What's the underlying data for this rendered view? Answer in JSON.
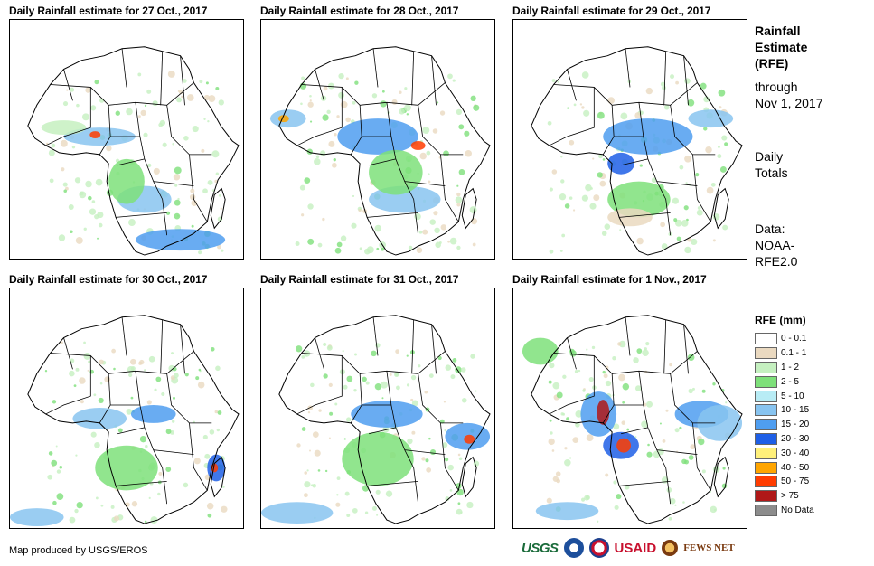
{
  "panels": [
    {
      "title": "Daily Rainfall estimate for 27 Oct., 2017"
    },
    {
      "title": "Daily Rainfall estimate for 28 Oct., 2017"
    },
    {
      "title": "Daily Rainfall estimate for 29 Oct., 2017"
    },
    {
      "title": "Daily Rainfall estimate for 30 Oct., 2017"
    },
    {
      "title": "Daily Rainfall estimate for 31 Oct., 2017"
    },
    {
      "title": "Daily Rainfall estimate for 1 Nov., 2017"
    }
  ],
  "side": {
    "line1": "Rainfall",
    "line2": "Estimate",
    "line3": "(RFE)",
    "line4": "through",
    "line5": "Nov 1, 2017",
    "line6": "Daily",
    "line7": "Totals",
    "line8": "Data:",
    "line9": "NOAA-",
    "line10": "RFE2.0"
  },
  "legend": {
    "title": "RFE (mm)",
    "items": [
      {
        "label": "0 - 0.1",
        "color": "#ffffff"
      },
      {
        "label": "0.1 - 1",
        "color": "#ead9c0"
      },
      {
        "label": "1 - 2",
        "color": "#c5f0c0"
      },
      {
        "label": "2 - 5",
        "color": "#7ee07a"
      },
      {
        "label": "5 - 10",
        "color": "#b8ecf5"
      },
      {
        "label": "10 - 15",
        "color": "#88c4f0"
      },
      {
        "label": "15 - 20",
        "color": "#4f9ef0"
      },
      {
        "label": "20 - 30",
        "color": "#1e5fe6"
      },
      {
        "label": "30 - 40",
        "color": "#fff07a"
      },
      {
        "label": "40 - 50",
        "color": "#ffa500"
      },
      {
        "label": "50 - 75",
        "color": "#ff3c00"
      },
      {
        "label": "> 75",
        "color": "#b01818"
      },
      {
        "label": "No Data",
        "color": "#8c8c8c"
      }
    ]
  },
  "credit": "Map produced by USGS/EROS",
  "logos": {
    "usgs": "USGS",
    "usaid": "USAID",
    "fews": "FEWS NET"
  }
}
